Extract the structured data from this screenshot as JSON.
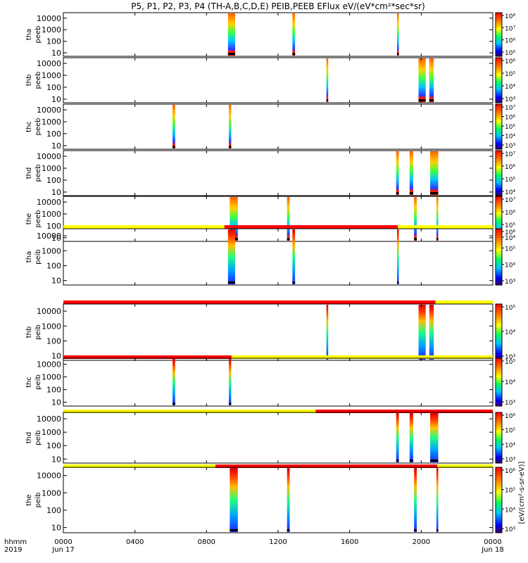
{
  "chart_data": {
    "type": "heatmap",
    "title": "P5, P1, P2, P3, P4 (TH-A,B,C,D,E) PEIB,PEEB EFlux eV/(eV*cm²*sec*sr)",
    "colorbar_label": "[eV/(cm²-s-sr-eV)]",
    "time_axis": {
      "label_top": "hhmm",
      "label_bottom": "2019",
      "range_hours": [
        0,
        24
      ],
      "ticks": [
        {
          "hour": 0,
          "label": "0000",
          "sub": "Jun 17"
        },
        {
          "hour": 4,
          "label": "0400",
          "sub": ""
        },
        {
          "hour": 8,
          "label": "0800",
          "sub": ""
        },
        {
          "hour": 12,
          "label": "1200",
          "sub": ""
        },
        {
          "hour": 16,
          "label": "1600",
          "sub": ""
        },
        {
          "hour": 20,
          "label": "2000",
          "sub": ""
        },
        {
          "hour": 24,
          "label": "0000",
          "sub": "Jun 18"
        }
      ]
    },
    "energy_axis": {
      "scale": "log",
      "range_eV": [
        5,
        30000
      ],
      "tick_labels": [
        "10",
        "100",
        "1000",
        "10000"
      ]
    },
    "panels": [
      {
        "ylabel": [
          "tha",
          "peeb"
        ],
        "bursts": [
          [
            9.2,
            9.6
          ],
          [
            12.8,
            12.95
          ],
          [
            18.65,
            18.75
          ]
        ],
        "mode_bar": null,
        "colorbar_ticks": [
          "10⁵",
          "10⁶",
          "10⁷",
          "10⁸"
        ]
      },
      {
        "ylabel": [
          "thb",
          "peeb"
        ],
        "bursts": [
          [
            14.7,
            14.8
          ],
          [
            19.85,
            20.25
          ],
          [
            20.45,
            20.7
          ]
        ],
        "mode_bar": null,
        "colorbar_ticks": [
          "10³",
          "10⁴",
          "10⁵",
          "10⁶"
        ]
      },
      {
        "ylabel": [
          "thc",
          "peeb"
        ],
        "bursts": [
          [
            6.1,
            6.25
          ],
          [
            9.25,
            9.38
          ]
        ],
        "mode_bar": null,
        "colorbar_ticks": [
          "10³",
          "10⁴",
          "10⁵",
          "10⁶",
          "10⁷"
        ]
      },
      {
        "ylabel": [
          "thd",
          "peeb"
        ],
        "bursts": [
          [
            18.6,
            18.75
          ],
          [
            19.35,
            19.55
          ],
          [
            20.5,
            20.95
          ]
        ],
        "mode_bar": null,
        "colorbar_ticks": [
          "10⁴",
          "10⁵",
          "10⁶",
          "10⁷"
        ]
      },
      {
        "ylabel": [
          "the",
          "peeb"
        ],
        "bursts": [
          [
            9.3,
            9.75
          ],
          [
            12.5,
            12.65
          ],
          [
            19.6,
            19.75
          ],
          [
            20.85,
            20.95
          ]
        ],
        "mode_bar": null,
        "colorbar_ticks": [
          "10⁴",
          "10⁵",
          "10⁶",
          "10⁷"
        ]
      },
      {
        "ylabel": [
          "tha",
          "peib"
        ],
        "bursts": [
          [
            9.2,
            9.6
          ],
          [
            12.8,
            12.95
          ],
          [
            18.65,
            18.75
          ]
        ],
        "mode_bar": [
          [
            0,
            9.0,
            "yellow"
          ],
          [
            9.0,
            18.7,
            "red"
          ],
          [
            18.7,
            24,
            "yellow"
          ]
        ],
        "colorbar_ticks": [
          "10³",
          "10⁴",
          "10⁵",
          "10⁶"
        ]
      },
      {
        "ylabel": [
          "thb",
          "peib"
        ],
        "bursts": [
          [
            14.7,
            14.8
          ],
          [
            19.85,
            20.25
          ],
          [
            20.45,
            20.7
          ]
        ],
        "mode_bar": [
          [
            0,
            20.8,
            "red"
          ],
          [
            20.8,
            24,
            "yellow"
          ]
        ],
        "colorbar_ticks": [
          "10³",
          "10⁴",
          "10⁵"
        ]
      },
      {
        "ylabel": [
          "thc",
          "peib"
        ],
        "bursts": [
          [
            6.1,
            6.25
          ],
          [
            9.25,
            9.38
          ]
        ],
        "mode_bar": [
          [
            0,
            9.4,
            "red"
          ],
          [
            9.4,
            24,
            "yellow"
          ]
        ],
        "colorbar_ticks": [
          "10³",
          "10⁴",
          "10⁵"
        ]
      },
      {
        "ylabel": [
          "thd",
          "peib"
        ],
        "bursts": [
          [
            18.6,
            18.75
          ],
          [
            19.35,
            19.55
          ],
          [
            20.5,
            20.95
          ]
        ],
        "mode_bar": [
          [
            0,
            14.1,
            "yellow"
          ],
          [
            14.1,
            24,
            "red"
          ]
        ],
        "colorbar_ticks": [
          "10³",
          "10⁴",
          "10⁵",
          "10⁶"
        ]
      },
      {
        "ylabel": [
          "the",
          "peib"
        ],
        "bursts": [
          [
            9.3,
            9.75
          ],
          [
            12.5,
            12.65
          ],
          [
            19.6,
            19.75
          ],
          [
            20.85,
            20.95
          ]
        ],
        "mode_bar": [
          [
            0,
            8.5,
            "yellow"
          ],
          [
            8.5,
            20.9,
            "red"
          ],
          [
            20.9,
            24,
            "yellow"
          ]
        ],
        "colorbar_ticks": [
          "10³",
          "10⁴",
          "10⁵",
          "10⁶"
        ]
      }
    ]
  }
}
